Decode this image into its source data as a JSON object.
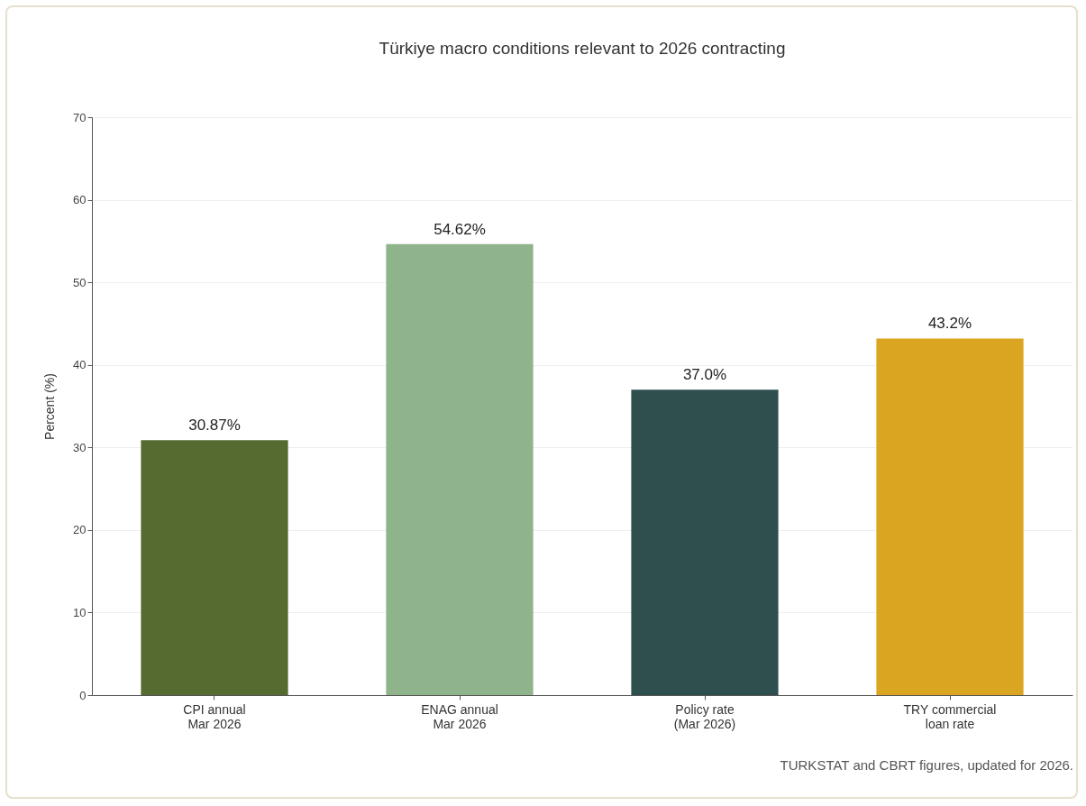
{
  "chart_data": {
    "type": "bar",
    "title": "Türkiye macro conditions relevant to 2026 contracting",
    "ylabel": "Percent (%)",
    "categories": [
      "CPI annual\nMar 2026",
      "ENAG annual\nMar 2026",
      "Policy rate\n(Mar 2026)",
      "TRY commercial\nloan rate"
    ],
    "values": [
      30.87,
      54.62,
      37.0,
      43.2
    ],
    "colors": [
      "#556b2f",
      "#8fb38a",
      "#2f4f4f",
      "#daa520"
    ],
    "value_labels": [
      "30.87%",
      "54.62%",
      "37.0%",
      "43.2%"
    ],
    "ylim": [
      0,
      70
    ],
    "yticks": [
      0,
      10,
      20,
      30,
      40,
      50,
      60,
      70
    ],
    "grid": "y",
    "annotations": [
      "TURKSTAT and CBRT figures, updated for 2026."
    ]
  }
}
